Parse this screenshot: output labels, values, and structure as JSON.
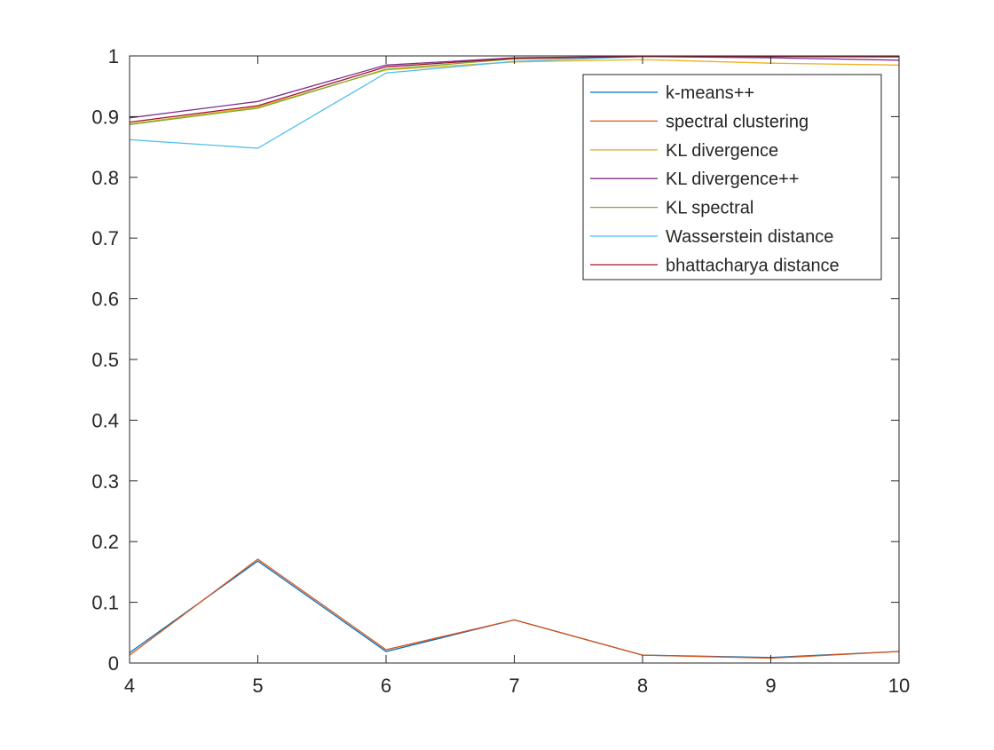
{
  "chart_data": {
    "type": "line",
    "title": "",
    "xlabel": "",
    "ylabel": "",
    "xlim": [
      4,
      10
    ],
    "ylim": [
      0,
      1
    ],
    "x": [
      4,
      5,
      6,
      7,
      8,
      9,
      10
    ],
    "x_ticks": [
      "4",
      "5",
      "6",
      "7",
      "8",
      "9",
      "10"
    ],
    "y_ticks": [
      "0",
      "0.1",
      "0.2",
      "0.3",
      "0.4",
      "0.5",
      "0.6",
      "0.7",
      "0.8",
      "0.9",
      "1"
    ],
    "grid": false,
    "legend_position": "top-right",
    "series": [
      {
        "name": "k-means++",
        "color": "#0072BD",
        "values": [
          0.017,
          0.168,
          0.019,
          0.071,
          0.013,
          0.009,
          0.019
        ]
      },
      {
        "name": "spectral clustering",
        "color": "#D95319",
        "values": [
          0.013,
          0.171,
          0.022,
          0.071,
          0.013,
          0.008,
          0.019
        ]
      },
      {
        "name": "KL divergence",
        "color": "#EDB120",
        "values": [
          0.888,
          0.916,
          0.977,
          0.99,
          0.994,
          0.988,
          0.985
        ]
      },
      {
        "name": "KL divergence++",
        "color": "#7E2F8E",
        "values": [
          0.898,
          0.925,
          0.985,
          0.997,
          0.999,
          0.997,
          0.993
        ]
      },
      {
        "name": "KL spectral",
        "color": "#77AC30",
        "values": [
          0.887,
          0.914,
          0.978,
          0.995,
          0.999,
          0.999,
          0.998
        ]
      },
      {
        "name": "Wasserstein distance",
        "color": "#4DBEEE",
        "values": [
          0.862,
          0.848,
          0.972,
          0.991,
          0.999,
          0.999,
          0.999
        ]
      },
      {
        "name": "bhattacharya distance",
        "color": "#A2142F",
        "values": [
          0.891,
          0.918,
          0.982,
          0.996,
          0.999,
          0.999,
          0.999
        ]
      }
    ]
  }
}
